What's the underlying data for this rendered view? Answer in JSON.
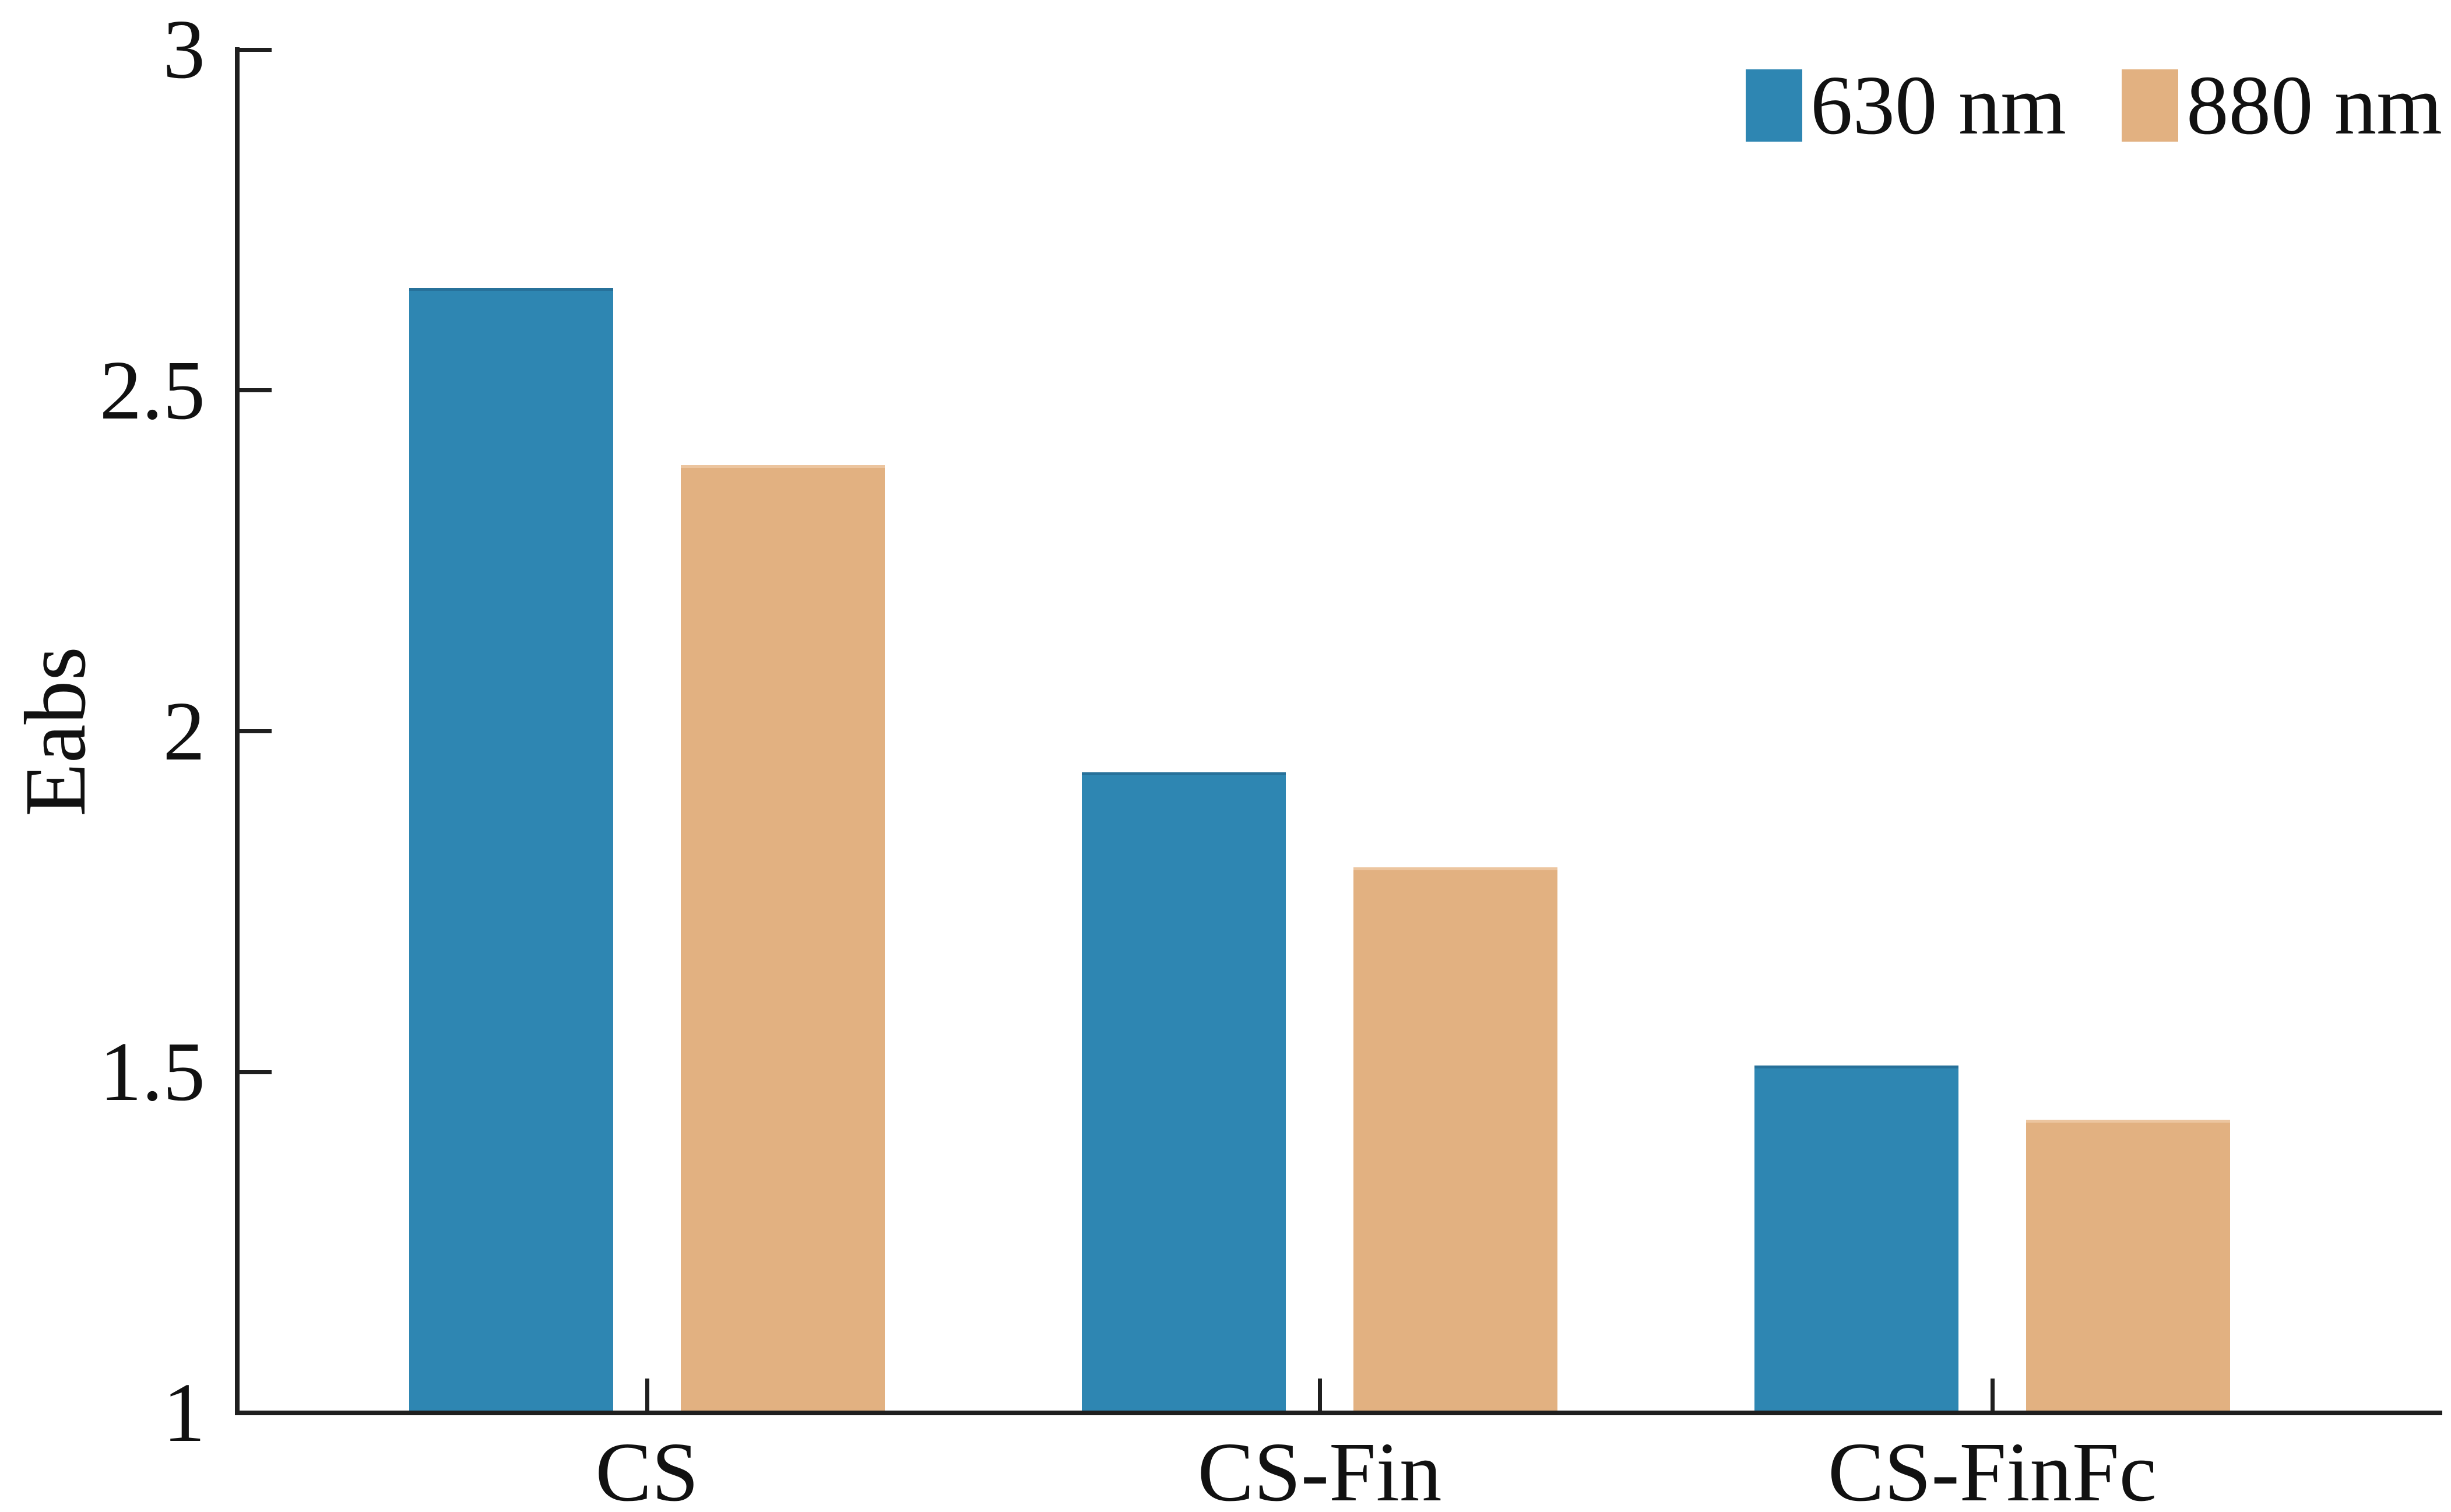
{
  "chart_data": {
    "type": "bar",
    "title": "",
    "categories": [
      "CS",
      "CS-Fin",
      "CS-FinFc"
    ],
    "series": [
      {
        "name": "630 nm",
        "color": "#2E86B2",
        "edge_color": "#27719A",
        "values": [
          2.65,
          1.94,
          1.51
        ]
      },
      {
        "name": "880 nm",
        "color": "#E2B181",
        "edge_color": "#ECC59F",
        "values": [
          2.39,
          1.8,
          1.43
        ]
      }
    ],
    "xlabel": "",
    "ylabel": "Eabs",
    "ylim": [
      1,
      3
    ],
    "yticks": [
      1,
      1.5,
      2,
      2.5,
      3
    ],
    "ytick_labels": [
      "1",
      "1.5",
      "2",
      "2.5",
      "3"
    ],
    "grid": false,
    "legend_position": "top-right",
    "legend_frame": false
  },
  "colors": {
    "axis": "#1F1F1F",
    "text": "#111111",
    "background": "#FFFFFF"
  }
}
